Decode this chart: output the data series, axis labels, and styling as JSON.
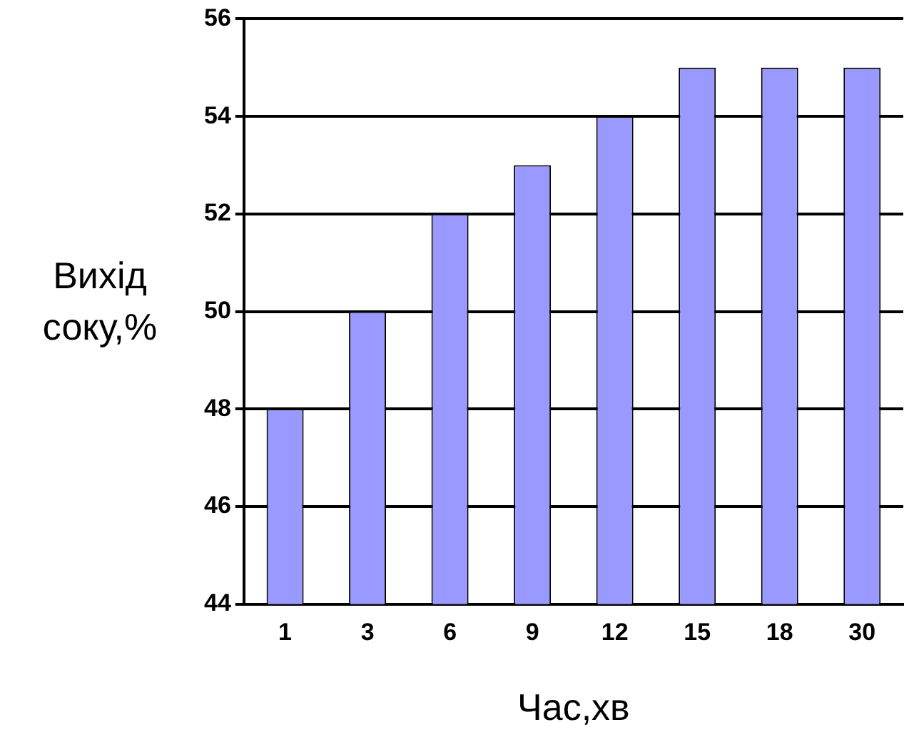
{
  "chart_data": {
    "type": "bar",
    "xlabel": "Час,хв",
    "ylabel": "Вихід соку,%",
    "categories": [
      "1",
      "3",
      "6",
      "9",
      "12",
      "15",
      "18",
      "30"
    ],
    "values": [
      48,
      50,
      52,
      53,
      54,
      55,
      55,
      55
    ],
    "color": "#9999ff",
    "ylim": [
      44,
      56
    ],
    "yticks": [
      44,
      46,
      48,
      50,
      52,
      54,
      56
    ],
    "grid": "y",
    "legend": false
  }
}
